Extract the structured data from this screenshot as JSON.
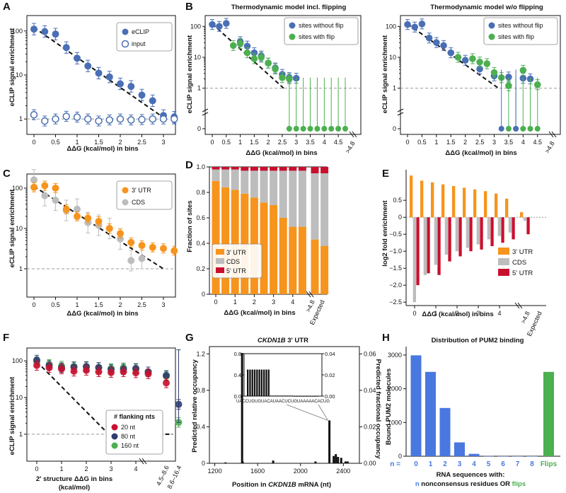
{
  "colors": {
    "blue": "#4a6fb5",
    "green": "#4caf50",
    "orange": "#f7941d",
    "gray": "#bdbdbd",
    "red": "#c8102e",
    "navy": "#2e3d6e",
    "pumBlue": "#4878e0",
    "pumGreen": "#4caf50"
  },
  "panels": {
    "A": "A",
    "B": "B",
    "C": "C",
    "D": "D",
    "E": "E",
    "F": "F",
    "G": "G",
    "H": "H"
  },
  "titles": {
    "b1": "Thermodynamic model incl. flipping",
    "b2": "Thermodynamic model w/o flipping",
    "g_gene": "CKDN1B",
    "g_suffix": " 3' UTR",
    "h": "Distribution of PUM2 binding"
  },
  "axes": {
    "ecl": "eCLIP signal enrichment",
    "ddg": "ΔΔG (kcal/mol) in bins",
    "frac": "Fraction of sites",
    "log2": "log2 fold enrichment",
    "f_x1": "2' structure ΔΔG in bins",
    "f_x2": "(kcal/mol)",
    "g_yl": "Predicted relative occupancy",
    "g_yr": "Predicted fractional occupancy",
    "g_x_pre": "Position in ",
    "g_x_gene": "CKDN1B",
    "g_x_post": " mRNA (nt)",
    "h_y": "Bound PUM2 molecules",
    "h_x1": "RNA sequences with:",
    "h_x_n": "n",
    "h_x_mid": " nonconsensus residues OR ",
    "h_x_flips": "flips"
  },
  "ticks": {
    "logY": [
      "100",
      "10",
      "1"
    ],
    "ddg": [
      "0",
      "0.5",
      "1",
      "1.5",
      "2",
      "2.5",
      "3"
    ],
    "ddgB": [
      "0",
      "0.5",
      "1",
      "1.5",
      "2",
      "2.5",
      "3",
      "3.5",
      "4",
      "4.5"
    ],
    "gt48": ">4.8",
    "ddgD": [
      "0",
      "1",
      "2",
      "3",
      "4"
    ],
    "expected": "Expected",
    "fracY": [
      "1.0",
      "0.8",
      "0.6",
      "0.4",
      "0.2",
      "0"
    ],
    "log2Y": [
      "0.5",
      "0",
      "−0.5",
      "−1.0",
      "−1.5",
      "−2.0",
      "−2.5"
    ],
    "ddgF": [
      "0",
      "1",
      "2",
      "3",
      "4"
    ],
    "fExtra": [
      "4.5–8.6",
      "8.6–16.4"
    ],
    "gX": [
      "1200",
      "1600",
      "2000",
      "2400"
    ],
    "gYL": [
      "1.2",
      "0.8",
      "0.4",
      "0"
    ],
    "gYR": [
      "0.06",
      "0.04",
      "0.02",
      "0.00"
    ],
    "insetYL": [
      "0.8",
      "0.4",
      "0.0"
    ],
    "insetYR": [
      "0.04",
      "0.02",
      "0.00"
    ],
    "insetSeq": "UACCUGUGUACAUAACUCUGUAAAAACACUG",
    "hY": [
      "3000",
      "2000",
      "1000",
      "0"
    ],
    "hX": [
      "0",
      "1",
      "2",
      "3",
      "4",
      "5",
      "6",
      "7",
      "8"
    ],
    "nEq": "n =",
    "flipsTick": "Flips"
  },
  "legends": {
    "a": [
      "eCLIP",
      "input"
    ],
    "b": [
      "sites without flip",
      "sites with flip"
    ],
    "c": [
      "3' UTR",
      "CDS"
    ],
    "d": [
      "3' UTR",
      "CDS",
      "5' UTR"
    ],
    "e": [
      "3' UTR",
      "CDS",
      "5' UTR"
    ],
    "f_title": "# flanking nts",
    "f": [
      "20 nt",
      "80 nt",
      "160 nt"
    ]
  },
  "chart_data": [
    {
      "panel": "A",
      "type": "scatter",
      "yscale": "log",
      "xlabel": "ΔΔG (kcal/mol) in bins",
      "ylabel": "eCLIP signal enrichment",
      "x": [
        0,
        0.25,
        0.5,
        0.75,
        1,
        1.25,
        1.5,
        1.75,
        2,
        2.25,
        2.5,
        2.75,
        3,
        3.25
      ],
      "series": [
        {
          "name": "eCLIP",
          "values": [
            110,
            97,
            85,
            42,
            24,
            16,
            11,
            9,
            6.3,
            5.5,
            3.5,
            2.6,
            1.2,
            1.1
          ]
        },
        {
          "name": "input",
          "values": [
            1.25,
            0.9,
            1.0,
            1.15,
            1.1,
            1.0,
            0.9,
            0.95,
            1.0,
            0.95,
            0.97,
            1.0,
            1.0,
            1.0
          ]
        }
      ]
    },
    {
      "panel": "B-left",
      "type": "scatter",
      "yscale": "log",
      "title": "Thermodynamic model incl. flipping",
      "series": [
        {
          "name": "sites without flip",
          "x": [
            0,
            0.25,
            0.5,
            1,
            1.25,
            1.5,
            1.75,
            2,
            2.25,
            2.5,
            2.75,
            3
          ],
          "values": [
            115,
            100,
            125,
            32,
            23,
            14,
            11,
            6.5,
            4.5,
            2.8,
            2.2,
            2.1
          ]
        },
        {
          "name": "sites with flip",
          "x": [
            0.75,
            1,
            1.25,
            1.5,
            1.75,
            2,
            2.25,
            2.5,
            2.75
          ],
          "values": [
            24,
            28,
            14,
            9,
            10,
            6.5,
            4.2,
            2.2,
            2.0
          ]
        }
      ]
    },
    {
      "panel": "B-right",
      "type": "scatter",
      "yscale": "log",
      "title": "Thermodynamic model w/o flipping",
      "series": [
        {
          "name": "sites without flip",
          "x": [
            0,
            0.25,
            0.5,
            0.75,
            1,
            1.25,
            1.5,
            2,
            2.5,
            3,
            3.5,
            4,
            4.25
          ],
          "values": [
            115,
            95,
            120,
            42,
            30,
            24,
            14,
            8,
            4.2,
            2.5,
            2.3,
            2.1,
            2.0
          ]
        },
        {
          "name": "sites with flip",
          "x": [
            1.75,
            2.25,
            2.5,
            2.75,
            3,
            3.25,
            3.5,
            4,
            4.5
          ],
          "values": [
            10,
            9,
            7,
            6.2,
            3.2,
            2.2,
            1.2,
            3.8,
            1.3
          ]
        }
      ]
    },
    {
      "panel": "C",
      "type": "scatter",
      "yscale": "log",
      "x": [
        0,
        0.25,
        0.5,
        0.75,
        1,
        1.25,
        1.5,
        1.75,
        2,
        2.25,
        2.5,
        2.75,
        3,
        3.25
      ],
      "series": [
        {
          "name": "3' UTR",
          "values": [
            105,
            115,
            100,
            30,
            20,
            18,
            15,
            10,
            7.5,
            4.5,
            3.8,
            3.4,
            3.2,
            2.8
          ]
        },
        {
          "name": "CDS",
          "values": [
            160,
            65,
            50,
            28,
            30,
            14,
            12,
            10,
            5.5,
            1.6,
            1.8,
            null,
            null,
            null
          ]
        }
      ]
    },
    {
      "panel": "D",
      "type": "bar",
      "stacked": true,
      "ylabel": "Fraction of sites",
      "categories": [
        "0",
        "0.5",
        "1",
        "1.5",
        "2",
        "2.5",
        "3",
        "3.5",
        "4",
        "4.5",
        ">4.8",
        "Expected"
      ],
      "series": [
        {
          "name": "3' UTR",
          "values": [
            0.89,
            0.84,
            0.82,
            0.79,
            0.76,
            0.72,
            0.7,
            0.6,
            0.53,
            0.53,
            0.43,
            0.38
          ]
        },
        {
          "name": "CDS",
          "values": [
            0.09,
            0.14,
            0.16,
            0.18,
            0.21,
            0.25,
            0.27,
            0.37,
            0.44,
            0.44,
            0.52,
            0.57
          ]
        },
        {
          "name": "5' UTR",
          "values": [
            0.02,
            0.02,
            0.02,
            0.03,
            0.03,
            0.03,
            0.03,
            0.03,
            0.03,
            0.03,
            0.05,
            0.05
          ]
        }
      ]
    },
    {
      "panel": "E",
      "type": "bar",
      "ylabel": "log2 fold enrichment",
      "categories": [
        "0",
        "0.5",
        "1",
        "1.5",
        "2",
        "2.5",
        "3",
        "3.5",
        "4",
        "4.5",
        ">4.8"
      ],
      "series": [
        {
          "name": "3' UTR",
          "values": [
            1.23,
            1.08,
            1.03,
            0.97,
            0.92,
            0.87,
            0.82,
            0.77,
            0.7,
            0.55,
            0.15
          ]
        },
        {
          "name": "CDS",
          "values": [
            -2.5,
            -1.7,
            -1.4,
            -1.1,
            -1.0,
            -0.9,
            -0.8,
            -0.65,
            -0.55,
            -0.45,
            -0.1
          ]
        },
        {
          "name": "5' UTR",
          "values": [
            -2.0,
            -1.65,
            -1.7,
            -1.3,
            -1.15,
            -1.0,
            -0.95,
            -0.85,
            -0.75,
            -0.65,
            -0.5
          ]
        }
      ]
    },
    {
      "panel": "F",
      "type": "scatter",
      "yscale": "log",
      "xlabel": "2' structure ΔΔG in bins (kcal/mol)",
      "categories": [
        "0",
        "0.5",
        "1",
        "1.5",
        "2",
        "2.5",
        "3",
        "3.5",
        "4",
        "4.5",
        "4.5–8.6",
        "8.6–16.4"
      ],
      "series": [
        {
          "name": "20 nt",
          "values": [
            75,
            65,
            60,
            52,
            55,
            50,
            48,
            50,
            47,
            44,
            25,
            null
          ]
        },
        {
          "name": "80 nt",
          "values": [
            105,
            75,
            65,
            68,
            70,
            66,
            58,
            60,
            62,
            50,
            40,
            6.5
          ]
        },
        {
          "name": "160 nt",
          "values": [
            95,
            80,
            72,
            70,
            68,
            65,
            62,
            65,
            60,
            50,
            38,
            2.1
          ]
        }
      ]
    },
    {
      "panel": "G",
      "type": "bar",
      "title": "CKDN1B 3' UTR",
      "xlabel": "Position in CKDN1B mRNA (nt)",
      "xlim": [
        1150,
        2550
      ],
      "x": [
        1300,
        1455,
        1460,
        1745,
        2140,
        2270,
        2310,
        2330,
        2350,
        2380,
        2420,
        2440
      ],
      "values": [
        0.01,
        1.21,
        0.02,
        0.03,
        0.02,
        0.47,
        0.08,
        0.1,
        0.07,
        0.06,
        0.02,
        0.02
      ],
      "inset": {
        "seq": "UACCUGUGUACAUAACUCUGUAAAAACACUG",
        "values": [
          0.5,
          0.5,
          0.5,
          0.5,
          0.5,
          0.5,
          0.5,
          0.5,
          0.5,
          0.5,
          0.01,
          0.01,
          0.01,
          0.01,
          0.01,
          0.01,
          0.01,
          0.01,
          0.01,
          0.01,
          0.003,
          0.003,
          0.003,
          0.003,
          0.003,
          0.003,
          0.003,
          0.003,
          0.003,
          0.003,
          0.003
        ]
      }
    },
    {
      "panel": "H",
      "type": "bar",
      "title": "Distribution of PUM2 binding",
      "ylabel": "Bound PUM2 molecules",
      "categories": [
        "0",
        "1",
        "2",
        "3",
        "4",
        "5",
        "6",
        "7",
        "8",
        "Flips"
      ],
      "values": [
        2990,
        2500,
        1430,
        410,
        70,
        5,
        2,
        1,
        0,
        2500
      ]
    }
  ]
}
